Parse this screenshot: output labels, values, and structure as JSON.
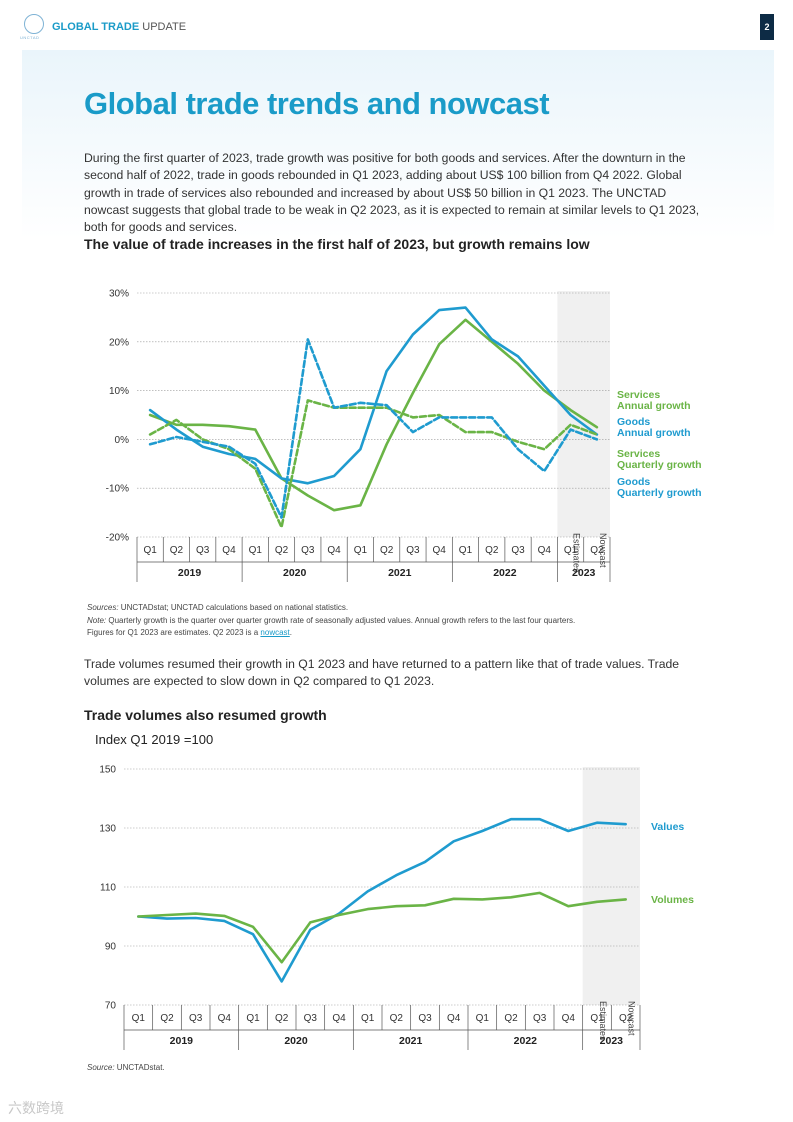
{
  "header": {
    "title_bold": "GLOBAL TRADE",
    "title_light": " UPDATE",
    "page_number": "2",
    "logo_text": "UNCTAD"
  },
  "title": "Global trade trends and nowcast",
  "intro": "During the first quarter of 2023, trade growth was positive for both goods and services. After the downturn in the second half of 2022, trade in goods rebounded in Q1 2023, adding about US$ 100 billion from Q4 2022. Global growth in trade of services also rebounded and increased by about US$ 50 billion in Q1 2023. The UNCTAD nowcast suggests that global trade to be weak in Q2 2023, as it is expected to remain at similar levels to Q1 2023, both for goods and services.",
  "colors": {
    "services": "#6ab446",
    "goods": "#1f9bcf",
    "accent": "#1a9bc8",
    "shade": "#e9e9e9"
  },
  "chart_data": [
    {
      "type": "line",
      "title": "The value of trade increases in the first half of 2023, but growth remains low",
      "quarters": [
        "Q1",
        "Q2",
        "Q3",
        "Q4",
        "Q1",
        "Q2",
        "Q3",
        "Q4",
        "Q1",
        "Q2",
        "Q3",
        "Q4",
        "Q1",
        "Q2",
        "Q3",
        "Q4",
        "Q1",
        "Q2"
      ],
      "years": [
        "2019",
        "2020",
        "2021",
        "2022",
        "2023"
      ],
      "yticks": [
        "30%",
        "20%",
        "10%",
        "0%",
        "-10%",
        "-20%"
      ],
      "ylim": [
        -20,
        30
      ],
      "shade_labels": [
        "Estimates",
        "Nowcast"
      ],
      "series": [
        {
          "name": "Services Annual growth",
          "label1": "Services",
          "label2": "Annual growth",
          "color": "#6ab446",
          "dashed": false,
          "values": [
            5,
            3,
            3,
            2.7,
            2,
            -8,
            -11.5,
            -14.5,
            -13.5,
            -1,
            9.5,
            19.5,
            24.5,
            20,
            15.5,
            10,
            6,
            2.5
          ]
        },
        {
          "name": "Goods Annual growth",
          "label1": "Goods",
          "label2": "Annual growth",
          "color": "#1f9bcf",
          "dashed": false,
          "values": [
            6,
            2,
            -1.5,
            -3,
            -4,
            -8,
            -9,
            -7.5,
            -2,
            14,
            21.5,
            26.5,
            27,
            20.5,
            17,
            11,
            5,
            1
          ]
        },
        {
          "name": "Services Quarterly growth",
          "label1": "Services",
          "label2": "Quarterly growth",
          "color": "#6ab446",
          "dashed": true,
          "values": [
            1,
            4,
            0,
            -2,
            -6,
            -18,
            8,
            6.5,
            6.5,
            6.5,
            4.5,
            5,
            1.5,
            1.5,
            -0.5,
            -2,
            3,
            1
          ]
        },
        {
          "name": "Goods Quarterly growth",
          "label1": "Goods",
          "label2": "Quarterly growth",
          "color": "#1f9bcf",
          "dashed": true,
          "values": [
            -1,
            0.5,
            -0.5,
            -1.5,
            -5,
            -16,
            20.5,
            6.5,
            7.5,
            7,
            1.5,
            4.5,
            4.5,
            4.5,
            -2,
            -6.5,
            2,
            0
          ]
        }
      ]
    },
    {
      "type": "line",
      "title": "Trade volumes also resumed growth",
      "ylabel": "Index Q1 2019 =100",
      "quarters": [
        "Q1",
        "Q2",
        "Q3",
        "Q4",
        "Q1",
        "Q2",
        "Q3",
        "Q4",
        "Q1",
        "Q2",
        "Q3",
        "Q4",
        "Q1",
        "Q2",
        "Q3",
        "Q4",
        "Q1",
        "Q2"
      ],
      "years": [
        "2019",
        "2020",
        "2021",
        "2022",
        "2023"
      ],
      "yticks": [
        "150",
        "130",
        "110",
        "90",
        "70"
      ],
      "ylim": [
        70,
        150
      ],
      "shade_labels": [
        "Estimates",
        "Nowcast"
      ],
      "series": [
        {
          "name": "Values",
          "color": "#1f9bcf",
          "values": [
            100,
            99.3,
            99.5,
            98.5,
            94,
            78,
            95.5,
            101,
            108.5,
            114,
            118.5,
            125.5,
            129,
            133,
            133,
            129,
            131.8,
            131.3
          ]
        },
        {
          "name": "Volumes",
          "color": "#6ab446",
          "values": [
            100,
            100.5,
            101,
            100.2,
            96.5,
            84.5,
            98,
            100.5,
            102.5,
            103.5,
            103.8,
            106,
            105.8,
            106.5,
            108,
            103.5,
            105,
            105.8
          ]
        }
      ]
    }
  ],
  "notes1": {
    "sources_label": "Sources:",
    "sources_text": " UNCTADstat; UNCTAD calculations based on national statistics.",
    "note_label": "Note:",
    "note_text": " Quarterly growth is the quarter over quarter growth rate of seasonally adjusted values. Annual growth refers to the last four quarters.",
    "estimates_text": "Figures for Q1 2023 are estimates. Q2 2023 is a ",
    "nowcast_link": "nowcast",
    "end": "."
  },
  "para2": "Trade volumes resumed their growth in Q1 2023 and have returned to a pattern like that of trade values. Trade volumes are expected to slow down in Q2 compared to Q1 2023.",
  "notes2": {
    "source_label": "Source:",
    "source_text": " UNCTADstat."
  },
  "watermark": "六数跨境"
}
